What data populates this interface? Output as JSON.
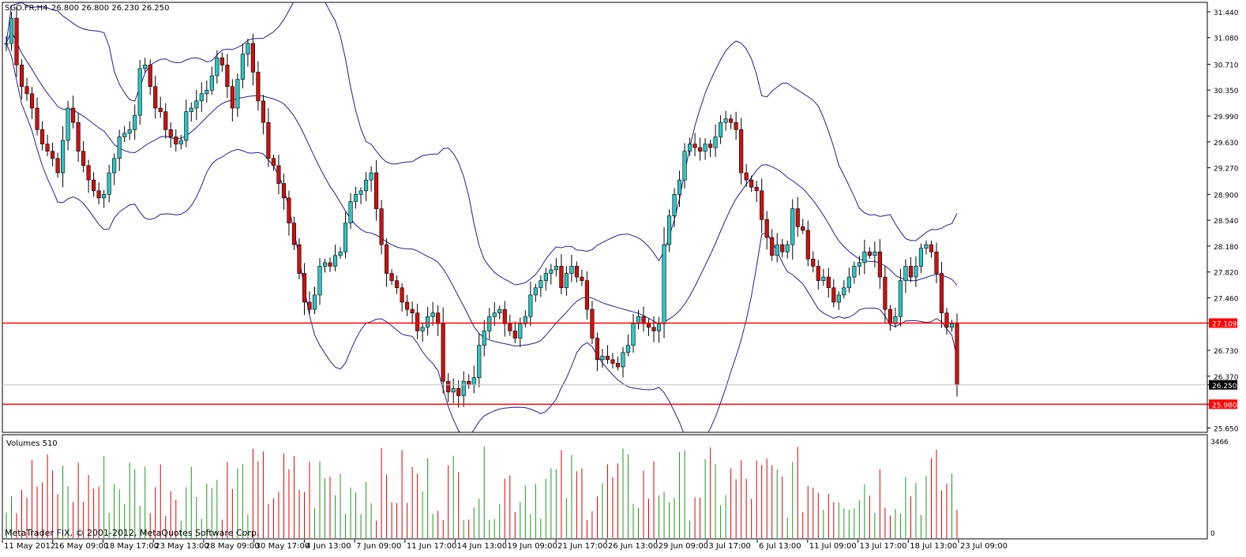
{
  "chart_header": {
    "symbol": "SGO.FR,H4",
    "ohlc": "26.800 26.800 26.230 26.250"
  },
  "volume_header": {
    "label": "Volumes 510"
  },
  "footer": {
    "copyright": "MetaTrader FIX, © 2001-2012, MetaQuotes Software Corp."
  },
  "colors": {
    "bull": "#2ec4c4",
    "bear": "#cc1111",
    "band": "#202090",
    "level_line": "#ff0000",
    "vol_up": "#1a9a1a",
    "vol_down": "#e00000",
    "current_price_bg": "#000000"
  },
  "chart_data": [
    {
      "type": "candlestick",
      "ylim": [
        25.6,
        31.56
      ],
      "y_ticks": [
        "31.440",
        "31.080",
        "30.710",
        "30.350",
        "29.990",
        "29.630",
        "29.270",
        "28.900",
        "28.540",
        "28.180",
        "27.820",
        "27.460",
        "27.109",
        "26.730",
        "26.370",
        "26.250",
        "25.980",
        "25.650"
      ],
      "x_ticks": [
        "11 May 2012",
        "16 May 09:00",
        "18 May 17:00",
        "23 May 13:00",
        "28 May 09:00",
        "30 May 17:00",
        "4 Jun 13:00",
        "7 Jun 09:00",
        "11 Jun 17:00",
        "14 Jun 13:00",
        "19 Jun 09:00",
        "21 Jun 17:00",
        "26 Jun 13:00",
        "29 Jun 09:00",
        "3 Jul 17:00",
        "6 Jul 13:00",
        "11 Jul 09:00",
        "13 Jul 17:00",
        "18 Jul 13:00",
        "23 Jul 09:00"
      ],
      "levels": [
        {
          "label": "27.109",
          "value": 27.109
        },
        {
          "label": "25.980",
          "value": 25.98
        }
      ],
      "current_price": {
        "label": "26.250",
        "value": 26.25
      },
      "close": [
        31.0,
        31.35,
        30.7,
        30.4,
        30.3,
        30.1,
        29.8,
        29.6,
        29.5,
        29.4,
        29.2,
        29.65,
        30.1,
        29.9,
        29.5,
        29.3,
        29.1,
        28.95,
        28.85,
        28.9,
        29.2,
        29.4,
        29.7,
        29.75,
        29.8,
        30.0,
        30.65,
        30.7,
        30.4,
        30.1,
        30.05,
        29.8,
        29.7,
        29.6,
        29.65,
        30.05,
        30.1,
        30.2,
        30.3,
        30.35,
        30.55,
        30.8,
        30.7,
        30.4,
        30.1,
        30.5,
        30.85,
        31.0,
        30.6,
        30.2,
        29.9,
        29.4,
        29.3,
        29.05,
        28.85,
        28.5,
        28.2,
        27.8,
        27.4,
        27.3,
        27.5,
        27.9,
        27.95,
        27.9,
        28.05,
        28.1,
        28.5,
        28.8,
        28.9,
        28.95,
        29.1,
        29.2,
        28.7,
        28.2,
        27.8,
        27.7,
        27.6,
        27.4,
        27.3,
        27.25,
        27.0,
        27.05,
        27.2,
        27.25,
        27.1,
        26.3,
        26.15,
        26.2,
        26.1,
        26.3,
        26.25,
        26.35,
        26.8,
        27.0,
        27.2,
        27.25,
        27.3,
        27.1,
        27.0,
        26.9,
        27.1,
        27.2,
        27.5,
        27.6,
        27.7,
        27.8,
        27.85,
        27.9,
        27.6,
        27.8,
        27.9,
        27.75,
        27.7,
        27.3,
        26.9,
        26.6,
        26.65,
        26.6,
        26.55,
        26.5,
        26.7,
        26.8,
        27.1,
        27.2,
        27.1,
        27.05,
        27.0,
        27.1,
        28.2,
        28.6,
        28.9,
        29.1,
        29.5,
        29.6,
        29.55,
        29.5,
        29.6,
        29.55,
        29.7,
        29.9,
        29.95,
        29.9,
        29.8,
        29.2,
        29.1,
        29.0,
        28.95,
        28.55,
        28.3,
        28.05,
        28.2,
        28.1,
        28.2,
        28.7,
        28.45,
        28.4,
        28.0,
        27.9,
        27.7,
        27.75,
        27.6,
        27.4,
        27.5,
        27.6,
        27.75,
        27.9,
        27.95,
        28.1,
        28.05,
        28.1,
        27.75,
        27.3,
        27.1,
        27.2,
        27.7,
        27.9,
        27.75,
        27.9,
        28.15,
        28.2,
        28.1,
        27.8,
        27.25,
        27.05,
        27.1,
        26.25
      ]
    },
    {
      "type": "bar",
      "title": "Volumes 510",
      "ylim": [
        0,
        3466
      ],
      "y_ticks": [
        "3466",
        "0"
      ]
    }
  ]
}
